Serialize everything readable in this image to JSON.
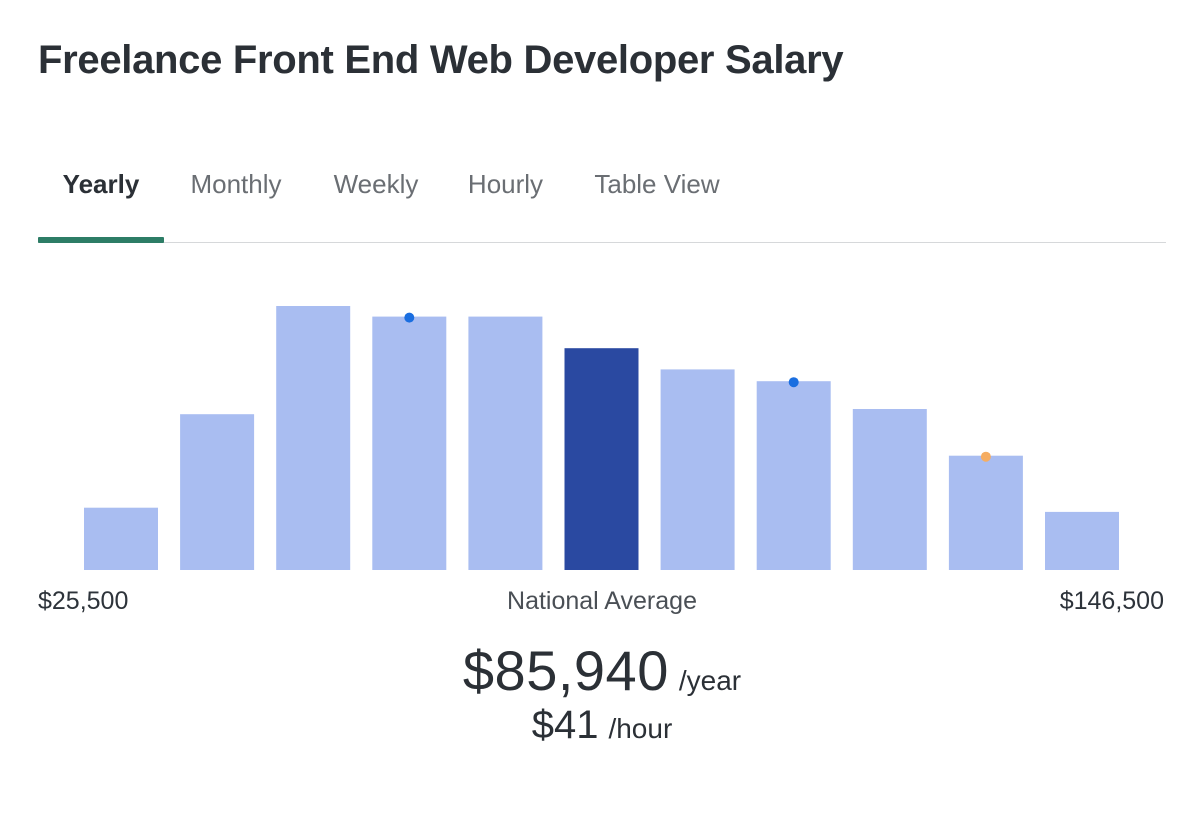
{
  "title": "Freelance Front End Web Developer Salary",
  "tabs": [
    {
      "label": "Yearly",
      "active": true
    },
    {
      "label": "Monthly",
      "active": false
    },
    {
      "label": "Weekly",
      "active": false
    },
    {
      "label": "Hourly",
      "active": false
    },
    {
      "label": "Table View",
      "active": false
    }
  ],
  "colors": {
    "bar": "#a9bdf1",
    "bar_highlight": "#2a49a1",
    "marker_blue": "#1a6ee0",
    "marker_orange": "#f5ad62",
    "tab_underline": "#2d7d66"
  },
  "chart_data": {
    "type": "bar",
    "x_min_label": "$25,500",
    "x_max_label": "$146,500",
    "values": [
      23.6,
      59.0,
      100.0,
      96.0,
      96.0,
      84.0,
      76.0,
      71.5,
      61.0,
      43.3,
      22.0
    ],
    "highlight_index": 5,
    "markers": [
      {
        "bar": 3,
        "color": "blue"
      },
      {
        "bar": 7,
        "color": "blue"
      },
      {
        "bar": 9,
        "color": "orange"
      }
    ]
  },
  "average": {
    "caption": "National Average",
    "yearly": "$85,940",
    "yearly_unit": "/year",
    "hourly": "$41",
    "hourly_unit": "/hour"
  }
}
